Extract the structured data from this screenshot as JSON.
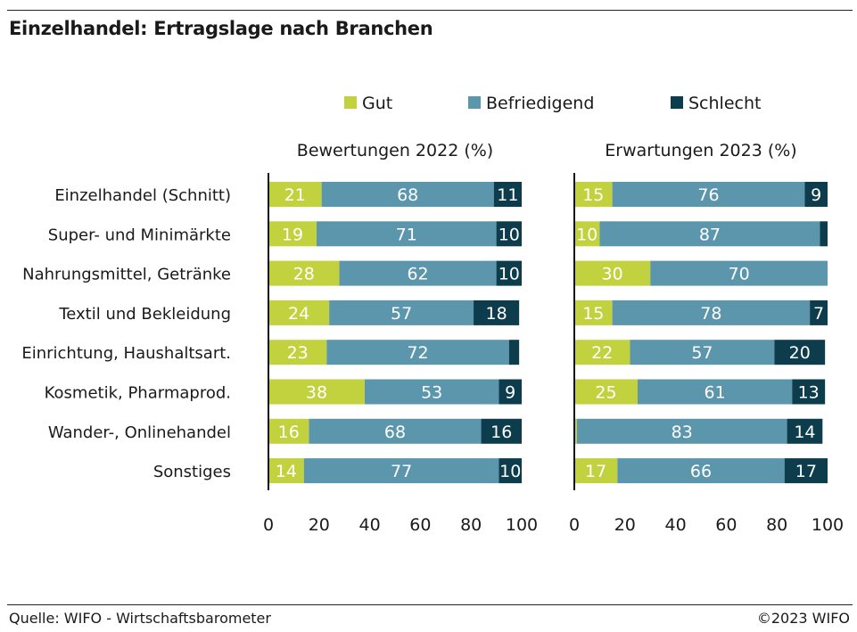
{
  "header": {
    "title": "Einzelhandel: Ertragslage nach Branchen"
  },
  "footer": {
    "source": "Quelle: WIFO - Wirtschaftsbarometer",
    "copyright": "©2023 WIFO"
  },
  "colors": {
    "gut": "#c2d23f",
    "befriedigend": "#5b96ad",
    "schlecht": "#0d3d4c",
    "axis": "#111111"
  },
  "chart_data": [
    {
      "type": "bar",
      "stacked": true,
      "orientation": "horizontal",
      "title": "Bewertungen 2022 (%)",
      "categories": [
        "Einzelhandel (Schnitt)",
        "Super- und Minimärkte",
        "Nahrungsmittel, Getränke",
        "Textil und Bekleidung",
        "Einrichtung, Haushaltsart.",
        "Kosmetik, Pharmaprod.",
        "Wander-, Onlinehandel",
        "Sonstiges"
      ],
      "series": [
        {
          "name": "Gut",
          "values": [
            21,
            19,
            28,
            24,
            23,
            38,
            16,
            14
          ]
        },
        {
          "name": "Befriedigend",
          "values": [
            68,
            71,
            62,
            57,
            72,
            53,
            68,
            77
          ]
        },
        {
          "name": "Schlecht",
          "values": [
            11,
            10,
            10,
            18,
            4,
            9,
            16,
            10
          ]
        }
      ],
      "xlim": [
        0,
        100
      ],
      "xticks": [
        "0",
        "20",
        "40",
        "60",
        "80",
        "100"
      ],
      "legend": "top"
    },
    {
      "type": "bar",
      "stacked": true,
      "orientation": "horizontal",
      "title": "Erwartungen 2023 (%)",
      "categories": [
        "Einzelhandel (Schnitt)",
        "Super- und Minimärkte",
        "Nahrungsmittel, Getränke",
        "Textil und Bekleidung",
        "Einrichtung, Haushaltsart.",
        "Kosmetik, Pharmaprod.",
        "Wander-, Onlinehandel",
        "Sonstiges"
      ],
      "series": [
        {
          "name": "Gut",
          "values": [
            15,
            10,
            30,
            15,
            22,
            25,
            1,
            17
          ]
        },
        {
          "name": "Befriedigend",
          "values": [
            76,
            87,
            70,
            78,
            57,
            61,
            83,
            66
          ]
        },
        {
          "name": "Schlecht",
          "values": [
            9,
            3,
            0,
            7,
            20,
            13,
            14,
            17
          ]
        }
      ],
      "xlim": [
        0,
        100
      ],
      "xticks": [
        "0",
        "20",
        "40",
        "60",
        "80",
        "100"
      ],
      "legend": "top"
    }
  ]
}
